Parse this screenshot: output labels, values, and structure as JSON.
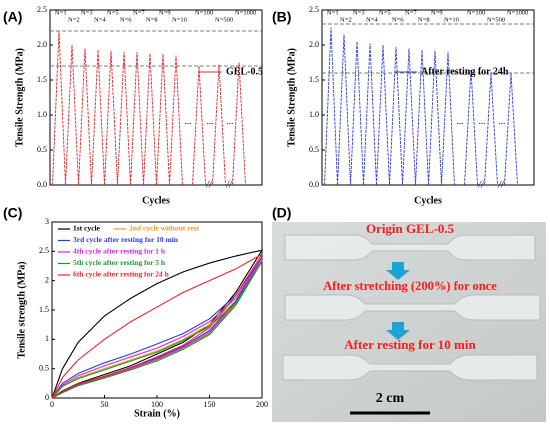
{
  "chart_data": [
    {
      "type": "cyclic",
      "panel": "(A)",
      "ylabel": "Tensile Strength (MPa)",
      "xlabel": "Cycles",
      "legend": "GEL-0.5",
      "color": "#e8262a",
      "categories": [
        "N=1",
        "N=2",
        "N=3",
        "N=4",
        "N=5",
        "N=6",
        "N=7",
        "N=8",
        "N=9",
        "N=10",
        "N=100",
        "N=500",
        "N=1000"
      ],
      "values": [
        2.2,
        2.0,
        1.95,
        1.93,
        1.92,
        1.9,
        1.9,
        1.88,
        1.87,
        1.85,
        1.7,
        1.72,
        1.75
      ],
      "reference_lines": [
        2.2,
        1.7
      ],
      "annotations": [
        "...",
        "...",
        "..."
      ],
      "ylim": [
        0,
        2.5
      ],
      "yticks": [
        {
          "value": 0,
          "label": "0.0"
        },
        0.5,
        {
          "value": 1,
          "label": "1.0"
        },
        1.5,
        {
          "value": 2,
          "label": "2.0"
        },
        2.5
      ]
    },
    {
      "type": "cyclic",
      "panel": "(B)",
      "ylabel": "Tensile Strength (MPa)",
      "xlabel": "Cycles",
      "legend": "After resting for 24h",
      "color": "#2f3fe0",
      "categories": [
        "N=1",
        "N=2",
        "N=3",
        "N=4",
        "N=5",
        "N=6",
        "N=7",
        "N=8",
        "N=9",
        "N=10",
        "N=100",
        "N=500",
        "N=1000"
      ],
      "values": [
        2.25,
        2.15,
        2.05,
        2.02,
        2.0,
        1.97,
        1.95,
        1.93,
        1.92,
        1.9,
        1.65,
        1.6,
        1.6
      ],
      "reference_lines": [
        2.3,
        1.6
      ],
      "annotations": [
        "...",
        "...",
        "..."
      ],
      "ylim": [
        0,
        2.5
      ],
      "yticks": [
        {
          "value": 0,
          "label": "0.0"
        },
        0.5,
        {
          "value": 1,
          "label": "1.0"
        },
        1.5,
        {
          "value": 2,
          "label": "2.0"
        },
        2.5
      ]
    },
    {
      "type": "line",
      "panel": "(C)",
      "ylabel": "Tensile strength (MPa)",
      "xlabel": "Strain (%)",
      "xlim": [
        0,
        200
      ],
      "xticks": [
        0,
        50,
        100,
        150,
        200
      ],
      "ylim": [
        0,
        3
      ],
      "yticks": [
        0,
        0.5,
        1,
        1.5,
        2,
        2.5,
        3
      ],
      "series": [
        {
          "name": "1st cycle",
          "color": "#000000",
          "x": [
            0,
            10,
            25,
            50,
            75,
            100,
            125,
            150,
            175,
            200,
            175,
            150,
            125,
            100,
            75,
            50,
            25,
            10,
            0
          ],
          "values": [
            0,
            0.5,
            0.95,
            1.4,
            1.7,
            1.95,
            2.15,
            2.3,
            2.42,
            2.52,
            1.8,
            1.25,
            0.95,
            0.75,
            0.55,
            0.4,
            0.25,
            0.12,
            0
          ]
        },
        {
          "name": "2nd cycle without rest",
          "color": "#f7931e",
          "x": [
            0,
            10,
            25,
            50,
            75,
            100,
            125,
            150,
            175,
            200,
            175,
            150,
            125,
            100,
            75,
            50,
            25,
            10,
            0
          ],
          "values": [
            0,
            0.2,
            0.35,
            0.5,
            0.65,
            0.8,
            1.0,
            1.25,
            1.65,
            2.35,
            1.6,
            1.1,
            0.85,
            0.65,
            0.5,
            0.35,
            0.22,
            0.1,
            0
          ]
        },
        {
          "name": "3rd cycle after resting for 10 min",
          "color": "#2e3ad8",
          "x": [
            0,
            10,
            25,
            50,
            75,
            100,
            125,
            150,
            175,
            200,
            175,
            150,
            125,
            100,
            75,
            50,
            25,
            10,
            0
          ],
          "values": [
            0,
            0.25,
            0.42,
            0.6,
            0.75,
            0.92,
            1.1,
            1.35,
            1.75,
            2.4,
            1.65,
            1.15,
            0.88,
            0.68,
            0.52,
            0.37,
            0.23,
            0.1,
            0
          ]
        },
        {
          "name": "4th cycle after resting for 1 h",
          "color": "#e020e0",
          "x": [
            0,
            10,
            25,
            50,
            75,
            100,
            125,
            150,
            175,
            200,
            175,
            150,
            125,
            100,
            75,
            50,
            25,
            10,
            0
          ],
          "values": [
            0,
            0.22,
            0.38,
            0.55,
            0.7,
            0.85,
            1.05,
            1.3,
            1.7,
            2.38,
            1.62,
            1.12,
            0.86,
            0.66,
            0.5,
            0.36,
            0.22,
            0.1,
            0
          ]
        },
        {
          "name": "5th cycle after resting for 5 h",
          "color": "#1a9a2a",
          "x": [
            0,
            10,
            25,
            50,
            75,
            100,
            125,
            150,
            175,
            200,
            175,
            150,
            125,
            100,
            75,
            50,
            25,
            10,
            0
          ],
          "values": [
            0,
            0.2,
            0.33,
            0.48,
            0.63,
            0.78,
            0.98,
            1.22,
            1.62,
            2.33,
            1.58,
            1.08,
            0.83,
            0.63,
            0.48,
            0.34,
            0.21,
            0.09,
            0
          ]
        },
        {
          "name": "6th cycle after resting for 24 h",
          "color": "#e8262a",
          "x": [
            0,
            10,
            25,
            50,
            75,
            100,
            125,
            150,
            175,
            200,
            175,
            150,
            125,
            100,
            75,
            50,
            25,
            10,
            0
          ],
          "values": [
            0,
            0.35,
            0.65,
            1.0,
            1.3,
            1.55,
            1.8,
            2.0,
            2.2,
            2.45,
            1.75,
            1.2,
            0.9,
            0.7,
            0.52,
            0.37,
            0.24,
            0.11,
            0
          ]
        }
      ]
    }
  ],
  "photo": {
    "panel": "(D)",
    "labels": [
      "Origin GEL-0.5",
      "After stretching (200%) for once",
      "After resting for 10 min"
    ],
    "scale": "2 cm"
  }
}
